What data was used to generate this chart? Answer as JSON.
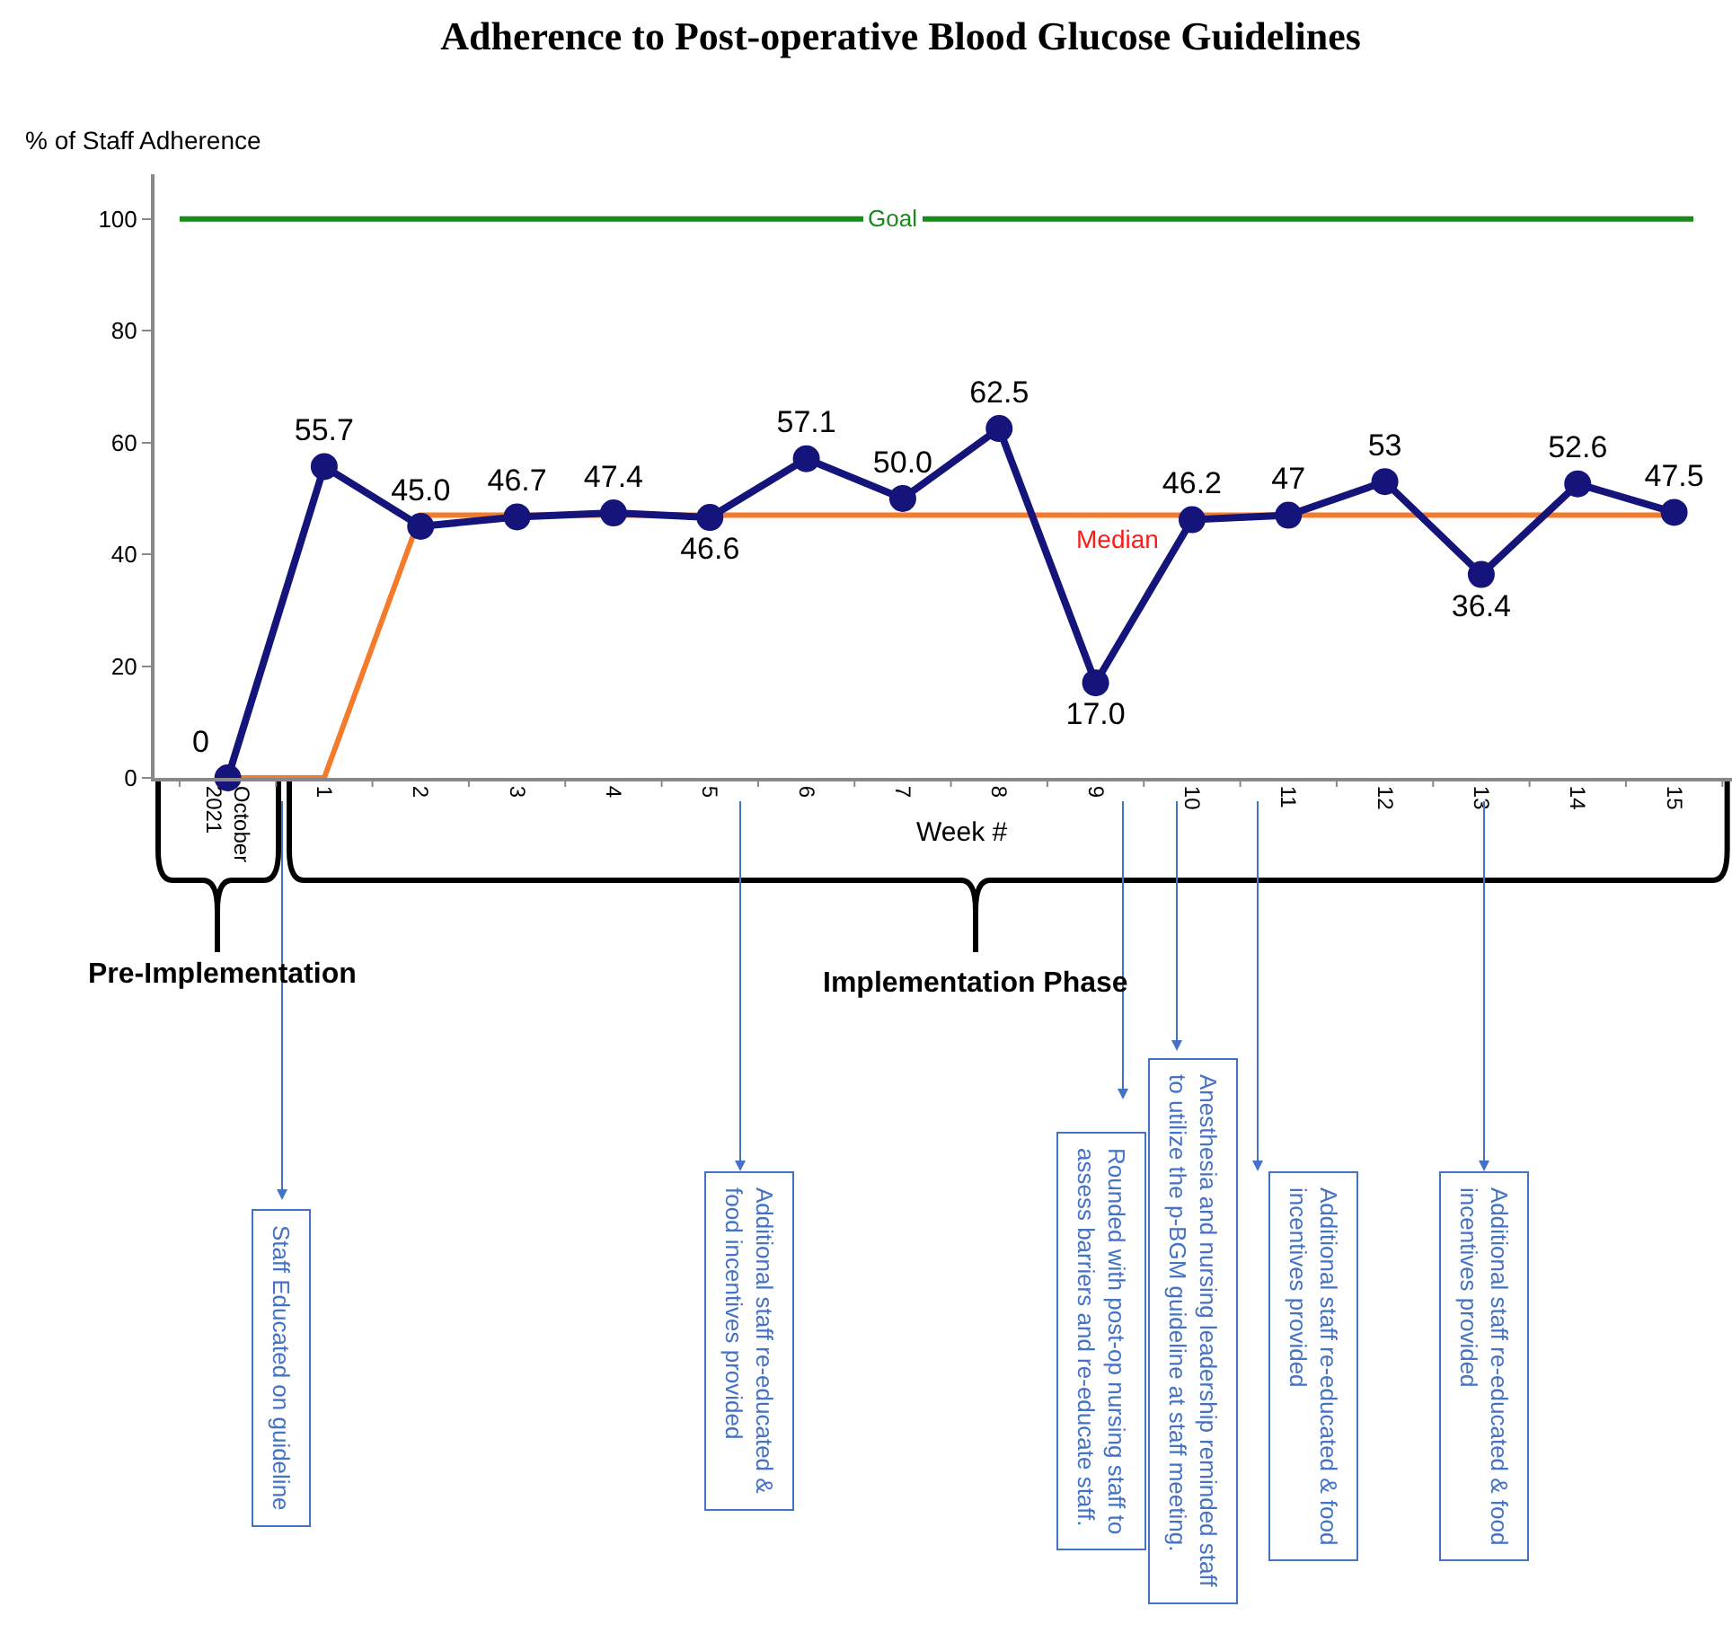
{
  "chart_data": {
    "type": "line",
    "title": "Adherence to Post-operative Blood Glucose Guidelines",
    "ylabel": "% of Staff Adherence",
    "xlabel": "Week #",
    "categories": [
      "October 2021",
      "1",
      "2",
      "3",
      "4",
      "5",
      "6",
      "7",
      "8",
      "9",
      "10",
      "11",
      "12",
      "13",
      "14",
      "15"
    ],
    "series": [
      {
        "color": "#14147a",
        "marker": "circle",
        "values": [
          0,
          55.7,
          45.0,
          46.7,
          47.4,
          46.6,
          57.1,
          50.0,
          62.5,
          17.0,
          46.2,
          47,
          53,
          36.4,
          52.6,
          47.5
        ],
        "value_labels": [
          "0",
          "55.7",
          "45.0",
          "46.7",
          "47.4",
          "46.6",
          "57.1",
          "50.0",
          "62.5",
          "17.0",
          "46.2",
          "47",
          "53",
          "36.4",
          "52.6",
          "47.5"
        ]
      },
      {
        "name": "Median",
        "color": "#f47b2c",
        "marker": "none",
        "values": [
          0,
          0,
          47,
          47,
          47,
          47,
          47,
          47,
          47,
          47,
          47,
          47,
          47,
          47,
          47,
          47
        ]
      }
    ],
    "ref_lines": [
      {
        "axis": "y",
        "value": 100,
        "label": "Goal",
        "color": "#1a8a1a"
      }
    ],
    "ylim": [
      0,
      108
    ],
    "yticks": [
      0,
      20,
      40,
      60,
      80,
      100
    ],
    "line_style": "solid",
    "annotations": [
      "Staff Educated on guideline",
      "Additional staff re-educated &\nfood incentives provided",
      "Rounded with post-op nursing staff to\nassess barriers and re-educate staff.",
      "Anesthesia and nursing leadership reminded staff\nto utilize the p-BGM guideline at staff meeting.",
      "Additional staff re-educated & food\nincentives provided",
      "Additional staff re-educated & food\nincentives provided",
      "Pre-Implementation",
      "Implementation Phase"
    ]
  }
}
